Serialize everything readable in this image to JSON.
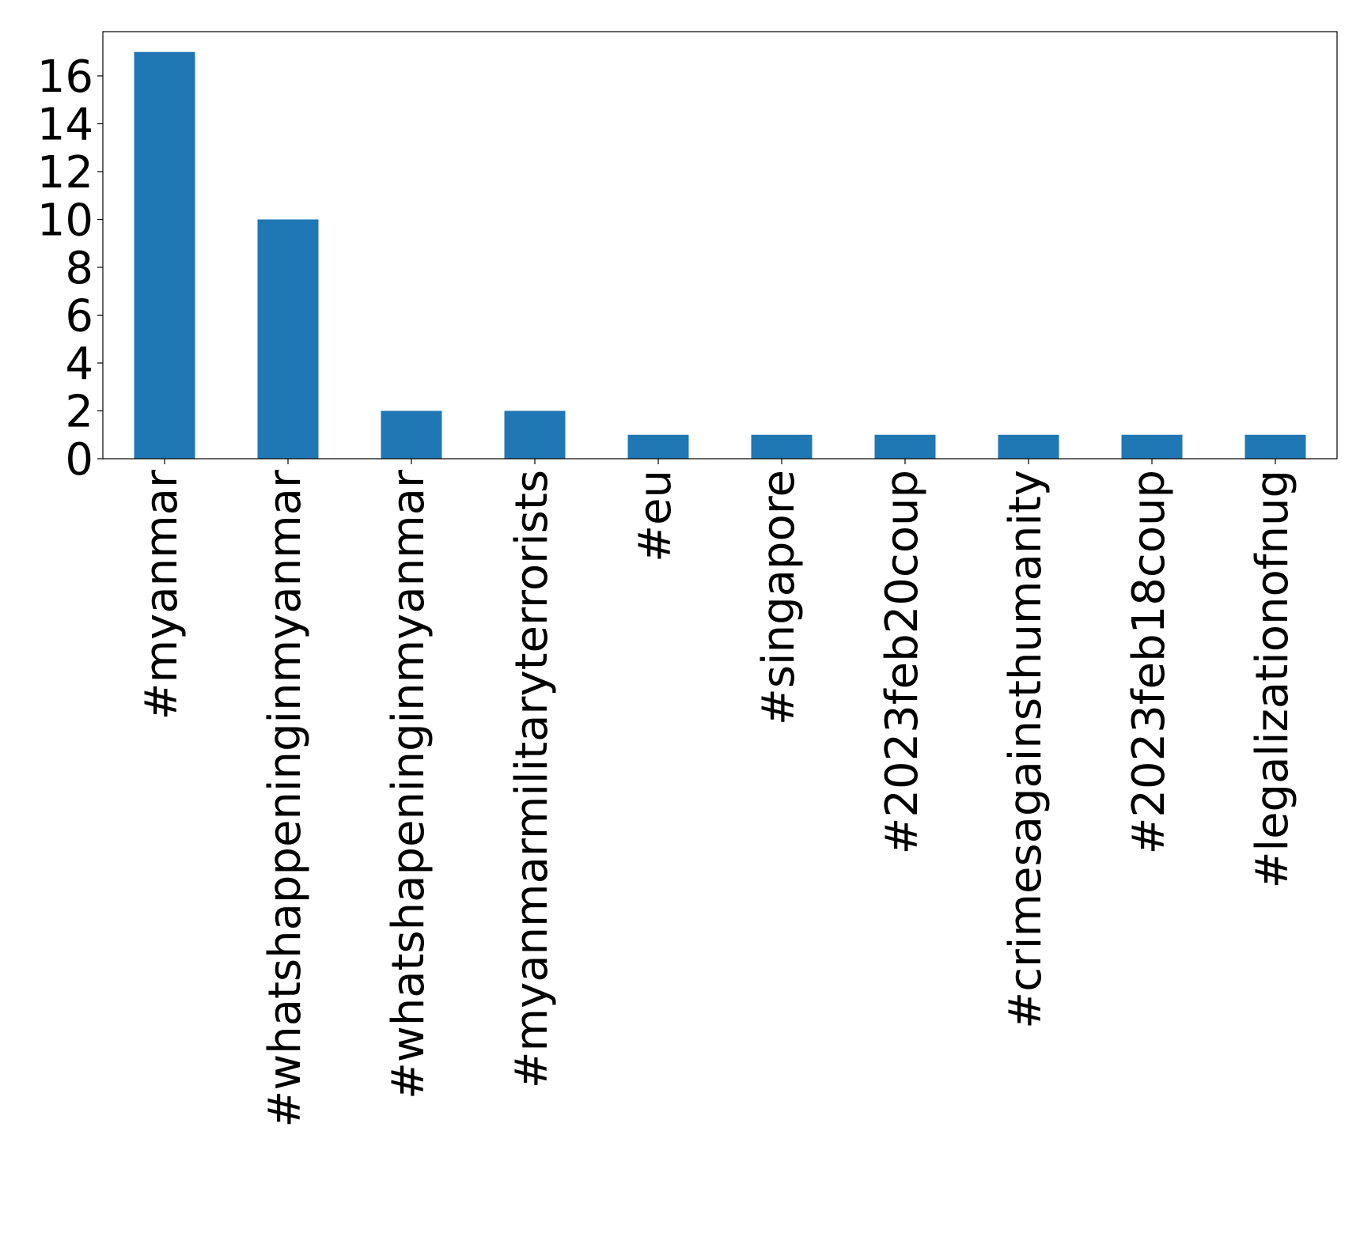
{
  "chart_data": {
    "type": "bar",
    "title": "",
    "xlabel": "",
    "ylabel": "",
    "categories": [
      "#myanmar",
      "#whatshappeninginmyanmar",
      "#whatshapeninginmyanmar",
      "#myanmarmilitaryterrorists",
      "#eu",
      "#singapore",
      "#2023feb20coup",
      "#crimesagainsthumanity",
      "#2023feb18coup",
      "#legalizationofnug"
    ],
    "values": [
      17,
      10,
      2,
      2,
      1,
      1,
      1,
      1,
      1,
      1
    ],
    "ylim": [
      0,
      17.85
    ],
    "yticks": [
      0,
      2,
      4,
      6,
      8,
      10,
      12,
      14,
      16
    ],
    "grid": false,
    "legend": "none",
    "colors": {
      "bar": "#1f77b4",
      "axes": "#000000",
      "background": "#ffffff"
    }
  }
}
